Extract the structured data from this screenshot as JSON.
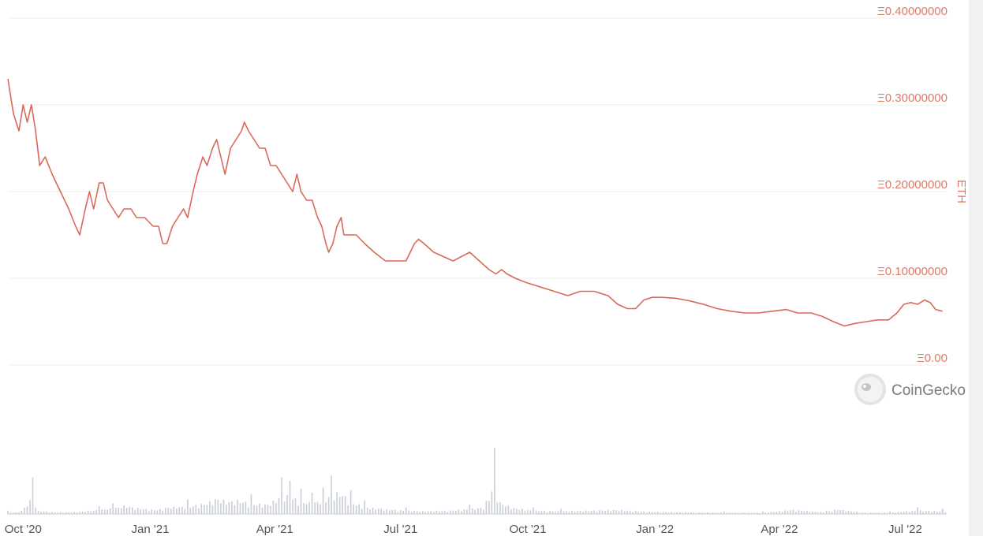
{
  "chart_data": {
    "type": "line",
    "axis_unit": "ETH",
    "y_ticks": [
      "Ξ0.40000000",
      "Ξ0.30000000",
      "Ξ0.20000000",
      "Ξ0.10000000",
      "Ξ0.00"
    ],
    "y_tick_values": [
      0.4,
      0.3,
      0.2,
      0.1,
      0.0
    ],
    "ylim": [
      0,
      0.4
    ],
    "x_ticks": [
      "Oct '20",
      "Jan '21",
      "Apr '21",
      "Jul '21",
      "Oct '21",
      "Jan '22",
      "Apr '22",
      "Jul '22"
    ],
    "x_tick_dates": [
      "2020-10-01",
      "2021-01-01",
      "2021-04-01",
      "2021-07-01",
      "2021-10-01",
      "2022-01-01",
      "2022-04-01",
      "2022-07-01"
    ],
    "xlim": [
      "2020-09-20",
      "2022-07-31"
    ],
    "grid": true,
    "series": [
      {
        "color": "#d9695a",
        "points": [
          [
            "2020-09-20",
            0.33
          ],
          [
            "2020-09-24",
            0.29
          ],
          [
            "2020-09-28",
            0.27
          ],
          [
            "2020-10-01",
            0.3
          ],
          [
            "2020-10-04",
            0.28
          ],
          [
            "2020-10-07",
            0.3
          ],
          [
            "2020-10-10",
            0.27
          ],
          [
            "2020-10-13",
            0.23
          ],
          [
            "2020-10-17",
            0.24
          ],
          [
            "2020-10-22",
            0.22
          ],
          [
            "2020-10-28",
            0.2
          ],
          [
            "2020-11-03",
            0.18
          ],
          [
            "2020-11-08",
            0.16
          ],
          [
            "2020-11-11",
            0.15
          ],
          [
            "2020-11-15",
            0.18
          ],
          [
            "2020-11-18",
            0.2
          ],
          [
            "2020-11-21",
            0.18
          ],
          [
            "2020-11-25",
            0.21
          ],
          [
            "2020-11-28",
            0.21
          ],
          [
            "2020-12-01",
            0.19
          ],
          [
            "2020-12-05",
            0.18
          ],
          [
            "2020-12-09",
            0.17
          ],
          [
            "2020-12-13",
            0.18
          ],
          [
            "2020-12-18",
            0.18
          ],
          [
            "2020-12-22",
            0.17
          ],
          [
            "2020-12-28",
            0.17
          ],
          [
            "2021-01-03",
            0.16
          ],
          [
            "2021-01-07",
            0.16
          ],
          [
            "2021-01-10",
            0.14
          ],
          [
            "2021-01-13",
            0.14
          ],
          [
            "2021-01-17",
            0.16
          ],
          [
            "2021-01-21",
            0.17
          ],
          [
            "2021-01-25",
            0.18
          ],
          [
            "2021-01-28",
            0.17
          ],
          [
            "2021-02-01",
            0.2
          ],
          [
            "2021-02-04",
            0.22
          ],
          [
            "2021-02-08",
            0.24
          ],
          [
            "2021-02-11",
            0.23
          ],
          [
            "2021-02-15",
            0.25
          ],
          [
            "2021-02-18",
            0.26
          ],
          [
            "2021-02-21",
            0.24
          ],
          [
            "2021-02-24",
            0.22
          ],
          [
            "2021-02-28",
            0.25
          ],
          [
            "2021-03-04",
            0.26
          ],
          [
            "2021-03-08",
            0.27
          ],
          [
            "2021-03-10",
            0.28
          ],
          [
            "2021-03-13",
            0.27
          ],
          [
            "2021-03-17",
            0.26
          ],
          [
            "2021-03-21",
            0.25
          ],
          [
            "2021-03-25",
            0.25
          ],
          [
            "2021-03-29",
            0.23
          ],
          [
            "2021-04-02",
            0.23
          ],
          [
            "2021-04-06",
            0.22
          ],
          [
            "2021-04-10",
            0.21
          ],
          [
            "2021-04-14",
            0.2
          ],
          [
            "2021-04-17",
            0.22
          ],
          [
            "2021-04-20",
            0.2
          ],
          [
            "2021-04-24",
            0.19
          ],
          [
            "2021-04-28",
            0.19
          ],
          [
            "2021-05-02",
            0.17
          ],
          [
            "2021-05-05",
            0.16
          ],
          [
            "2021-05-08",
            0.14
          ],
          [
            "2021-05-10",
            0.13
          ],
          [
            "2021-05-13",
            0.14
          ],
          [
            "2021-05-16",
            0.16
          ],
          [
            "2021-05-19",
            0.17
          ],
          [
            "2021-05-21",
            0.15
          ],
          [
            "2021-05-25",
            0.15
          ],
          [
            "2021-05-30",
            0.15
          ],
          [
            "2021-06-05",
            0.14
          ],
          [
            "2021-06-12",
            0.13
          ],
          [
            "2021-06-20",
            0.12
          ],
          [
            "2021-06-28",
            0.12
          ],
          [
            "2021-07-05",
            0.12
          ],
          [
            "2021-07-08",
            0.13
          ],
          [
            "2021-07-11",
            0.14
          ],
          [
            "2021-07-14",
            0.145
          ],
          [
            "2021-07-18",
            0.14
          ],
          [
            "2021-07-25",
            0.13
          ],
          [
            "2021-08-01",
            0.125
          ],
          [
            "2021-08-08",
            0.12
          ],
          [
            "2021-08-14",
            0.125
          ],
          [
            "2021-08-20",
            0.13
          ],
          [
            "2021-08-27",
            0.12
          ],
          [
            "2021-09-03",
            0.11
          ],
          [
            "2021-09-08",
            0.105
          ],
          [
            "2021-09-12",
            0.11
          ],
          [
            "2021-09-16",
            0.105
          ],
          [
            "2021-09-22",
            0.1
          ],
          [
            "2021-09-30",
            0.095
          ],
          [
            "2021-10-10",
            0.09
          ],
          [
            "2021-10-20",
            0.085
          ],
          [
            "2021-10-30",
            0.08
          ],
          [
            "2021-11-08",
            0.085
          ],
          [
            "2021-11-18",
            0.085
          ],
          [
            "2021-11-28",
            0.08
          ],
          [
            "2021-12-05",
            0.07
          ],
          [
            "2021-12-12",
            0.065
          ],
          [
            "2021-12-18",
            0.065
          ],
          [
            "2021-12-24",
            0.075
          ],
          [
            "2021-12-30",
            0.078
          ],
          [
            "2022-01-06",
            0.078
          ],
          [
            "2022-01-16",
            0.077
          ],
          [
            "2022-01-26",
            0.074
          ],
          [
            "2022-02-05",
            0.07
          ],
          [
            "2022-02-15",
            0.065
          ],
          [
            "2022-02-25",
            0.062
          ],
          [
            "2022-03-07",
            0.06
          ],
          [
            "2022-03-17",
            0.06
          ],
          [
            "2022-03-27",
            0.062
          ],
          [
            "2022-04-06",
            0.064
          ],
          [
            "2022-04-14",
            0.06
          ],
          [
            "2022-04-24",
            0.06
          ],
          [
            "2022-05-02",
            0.056
          ],
          [
            "2022-05-10",
            0.05
          ],
          [
            "2022-05-18",
            0.045
          ],
          [
            "2022-05-26",
            0.048
          ],
          [
            "2022-06-03",
            0.05
          ],
          [
            "2022-06-11",
            0.052
          ],
          [
            "2022-06-19",
            0.052
          ],
          [
            "2022-06-25",
            0.06
          ],
          [
            "2022-06-30",
            0.07
          ],
          [
            "2022-07-05",
            0.072
          ],
          [
            "2022-07-10",
            0.07
          ],
          [
            "2022-07-15",
            0.075
          ],
          [
            "2022-07-19",
            0.072
          ],
          [
            "2022-07-23",
            0.064
          ],
          [
            "2022-07-28",
            0.062
          ]
        ]
      }
    ],
    "volume": {
      "color": "#c9cdd8",
      "relative_bars": [
        [
          "2020-09-20",
          0.05
        ],
        [
          "2020-09-30",
          0.05
        ],
        [
          "2020-10-08",
          0.55
        ],
        [
          "2020-10-10",
          0.1
        ],
        [
          "2020-10-25",
          0.05
        ],
        [
          "2020-11-10",
          0.06
        ],
        [
          "2020-11-25",
          0.12
        ],
        [
          "2020-12-05",
          0.16
        ],
        [
          "2020-12-14",
          0.25
        ],
        [
          "2020-12-20",
          0.18
        ],
        [
          "2021-01-05",
          0.12
        ],
        [
          "2021-01-15",
          0.2
        ],
        [
          "2021-01-28",
          0.22
        ],
        [
          "2021-02-10",
          0.3
        ],
        [
          "2021-02-18",
          0.45
        ],
        [
          "2021-02-26",
          0.35
        ],
        [
          "2021-03-06",
          0.4
        ],
        [
          "2021-03-15",
          0.3
        ],
        [
          "2021-03-28",
          0.28
        ],
        [
          "2021-04-06",
          0.55
        ],
        [
          "2021-04-12",
          0.5
        ],
        [
          "2021-04-20",
          0.38
        ],
        [
          "2021-04-28",
          0.32
        ],
        [
          "2021-05-06",
          0.4
        ],
        [
          "2021-05-12",
          0.58
        ],
        [
          "2021-05-19",
          0.62
        ],
        [
          "2021-05-26",
          0.36
        ],
        [
          "2021-06-05",
          0.2
        ],
        [
          "2021-06-20",
          0.14
        ],
        [
          "2021-07-05",
          0.1
        ],
        [
          "2021-07-20",
          0.08
        ],
        [
          "2021-08-05",
          0.1
        ],
        [
          "2021-08-20",
          0.14
        ],
        [
          "2021-09-01",
          0.2
        ],
        [
          "2021-09-07",
          1.0
        ],
        [
          "2021-09-10",
          0.35
        ],
        [
          "2021-09-20",
          0.18
        ],
        [
          "2021-10-05",
          0.1
        ],
        [
          "2021-10-25",
          0.08
        ],
        [
          "2021-11-15",
          0.1
        ],
        [
          "2021-12-05",
          0.12
        ],
        [
          "2021-12-25",
          0.07
        ],
        [
          "2022-01-20",
          0.05
        ],
        [
          "2022-02-20",
          0.04
        ],
        [
          "2022-03-20",
          0.04
        ],
        [
          "2022-04-10",
          0.12
        ],
        [
          "2022-05-05",
          0.05
        ],
        [
          "2022-05-12",
          0.14
        ],
        [
          "2022-06-01",
          0.04
        ],
        [
          "2022-06-20",
          0.04
        ],
        [
          "2022-07-10",
          0.1
        ],
        [
          "2022-07-28",
          0.08
        ]
      ]
    }
  },
  "brand": {
    "name": "CoinGecko",
    "icon": "coingecko-logo-icon"
  }
}
